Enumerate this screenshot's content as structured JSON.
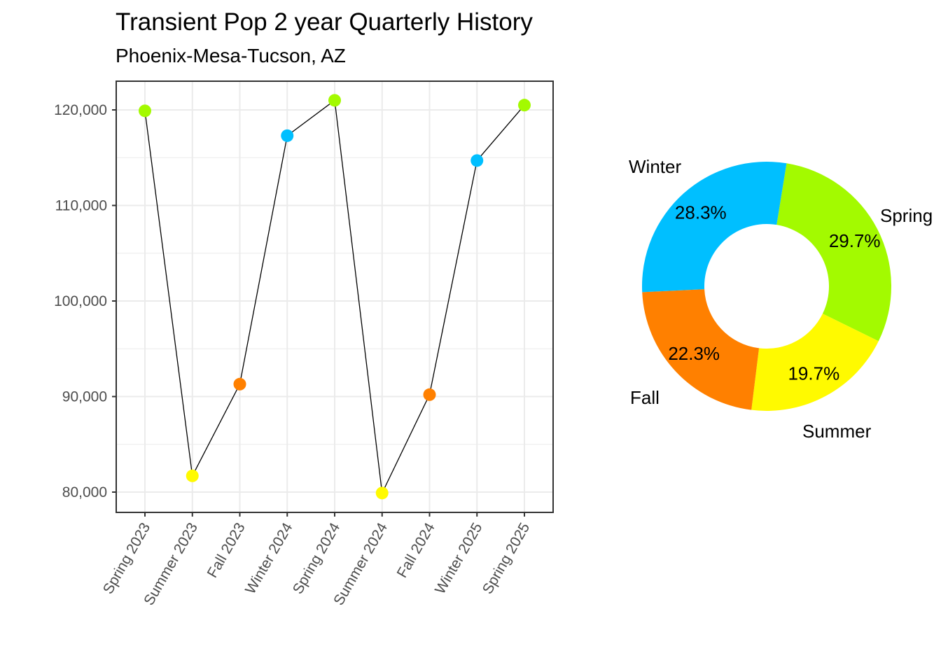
{
  "header": {
    "title": "Transient Pop 2 year Quarterly History",
    "subtitle": "Phoenix-Mesa-Tucson, AZ"
  },
  "colors": {
    "Spring": "#A3FA00",
    "Summer": "#FFFA00",
    "Fall": "#FF8000",
    "Winter": "#00BFFF",
    "line": "#000000",
    "grid": "#EBEBEB",
    "axis": "#333333",
    "tick_text": "#4D4D4D"
  },
  "chart_data": [
    {
      "type": "line",
      "title": "Transient Pop 2 year Quarterly History",
      "subtitle": "Phoenix-Mesa-Tucson, AZ",
      "xlabel": "",
      "ylabel": "",
      "categories": [
        "Spring 2023",
        "Summer 2023",
        "Fall 2023",
        "Winter 2024",
        "Spring 2024",
        "Summer 2024",
        "Fall 2024",
        "Winter 2025",
        "Spring 2025"
      ],
      "season": [
        "Spring",
        "Summer",
        "Fall",
        "Winter",
        "Spring",
        "Summer",
        "Fall",
        "Winter",
        "Spring"
      ],
      "values": [
        119900,
        81700,
        91300,
        117300,
        121000,
        79900,
        90200,
        114700,
        120500
      ],
      "yticks": [
        80000,
        90000,
        100000,
        110000,
        120000
      ],
      "ytick_labels": [
        "80,000",
        "90,000",
        "100,000",
        "110,000",
        "120,000"
      ],
      "ylim": [
        77800,
        123000
      ],
      "grid": true,
      "legend": "none",
      "markers": "points colored by season"
    },
    {
      "type": "pie",
      "style": "donut",
      "categories": [
        "Spring",
        "Summer",
        "Fall",
        "Winter"
      ],
      "values": [
        29.7,
        19.7,
        22.3,
        28.3
      ],
      "labels": [
        "29.7%",
        "19.7%",
        "22.3%",
        "28.3%"
      ],
      "legend": "none"
    }
  ]
}
